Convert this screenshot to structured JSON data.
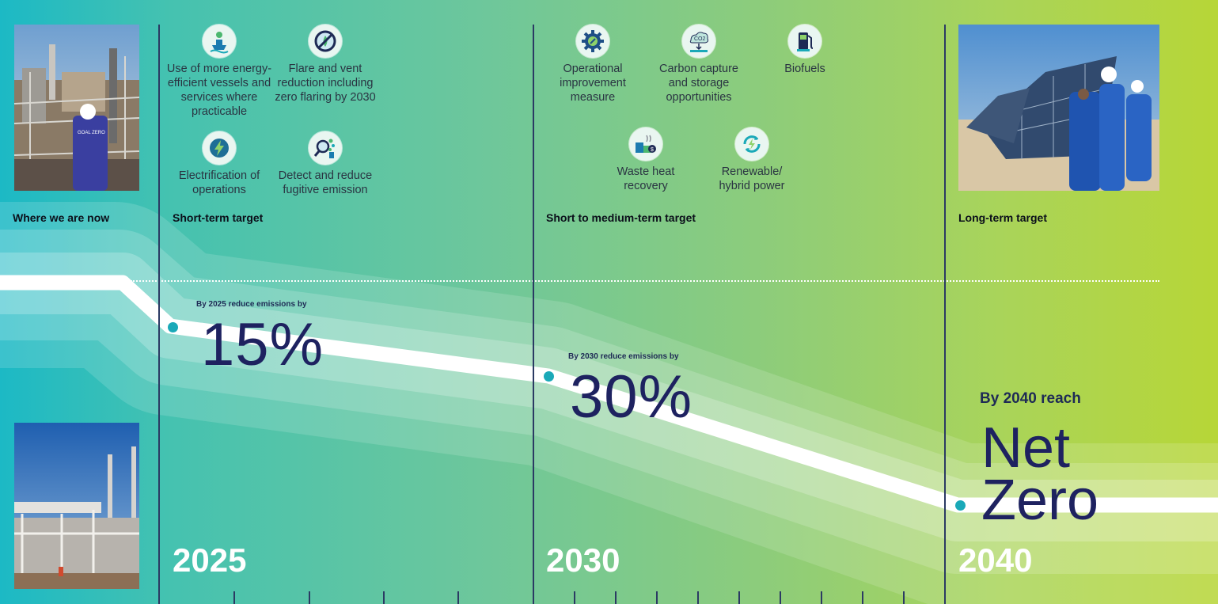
{
  "sections": {
    "now": "Where we are now",
    "short": "Short-term target",
    "medium": "Short to medium-term target",
    "long": "Long-term target"
  },
  "short_term_initiatives": [
    {
      "icon": "vessel-icon",
      "label": "Use of more energy-efficient vessels and services where practicable"
    },
    {
      "icon": "no-flare-icon",
      "label": "Flare and vent reduction including zero flaring by 2030"
    },
    {
      "icon": "lightning-icon",
      "label": "Electrification of operations"
    },
    {
      "icon": "magnifier-emission-icon",
      "label": "Detect and reduce fugitive emission"
    }
  ],
  "medium_term_initiatives": [
    {
      "icon": "gear-icon",
      "label": "Operational improvement measure"
    },
    {
      "icon": "co2-cloud-icon",
      "label": "Carbon capture and storage opportunities",
      "badge": "CO2"
    },
    {
      "icon": "fuel-pump-icon",
      "label": "Biofuels"
    },
    {
      "icon": "heat-recovery-icon",
      "label": "Waste heat recovery"
    },
    {
      "icon": "renewable-cycle-icon",
      "label": "Renewable/ hybrid power"
    }
  ],
  "milestones": [
    {
      "year": "2025",
      "lead": "By 2025 reduce emissions by",
      "value": "15%"
    },
    {
      "year": "2030",
      "lead": "By 2030 reduce emissions by",
      "value": "30%"
    },
    {
      "year": "2040",
      "lead": "By 2040 reach",
      "value_line1": "Net",
      "value_line2": "Zero"
    }
  ],
  "photos": {
    "top_left_badge": "GOAL ZERO"
  },
  "colors": {
    "accent_navy": "#1e2260",
    "marker_teal": "#1aa9b8",
    "gradient_start": "#1cb9c5",
    "gradient_end": "#b7d637"
  }
}
